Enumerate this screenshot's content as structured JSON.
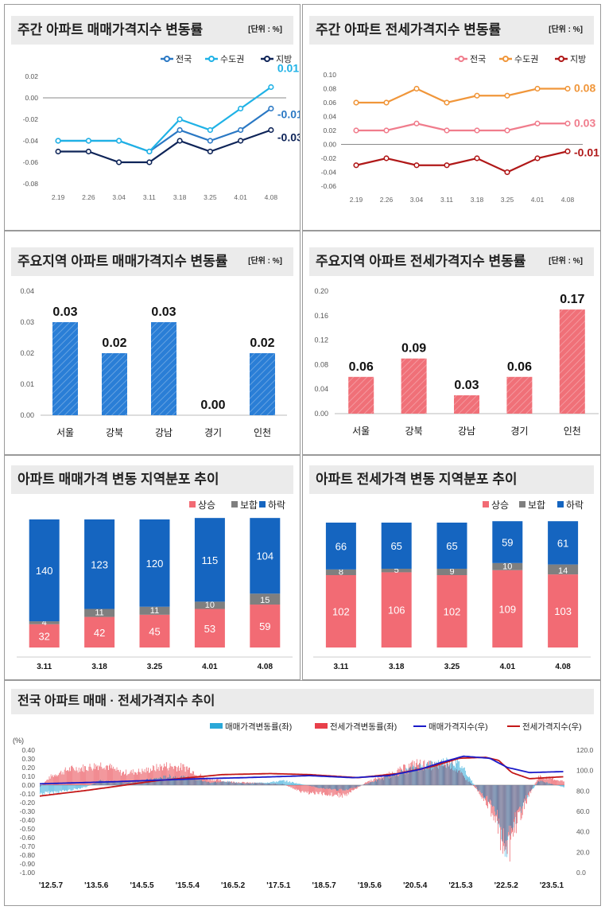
{
  "weekly_sale": {
    "title": "주간 아파트 매매가격지수 변동률",
    "unit": "[단위 : %]",
    "colors": [
      "#2a78c4",
      "#1fb2e6",
      "#0e2458"
    ],
    "chart_data": {
      "type": "line",
      "categories": [
        "2.19",
        "2.26",
        "3.04",
        "3.11",
        "3.18",
        "3.25",
        "4.01",
        "4.08"
      ],
      "series": [
        {
          "name": "전국",
          "values": [
            -0.04,
            -0.04,
            -0.04,
            -0.05,
            -0.03,
            -0.04,
            -0.03,
            -0.01
          ]
        },
        {
          "name": "수도권",
          "values": [
            -0.04,
            -0.04,
            -0.04,
            -0.05,
            -0.02,
            -0.03,
            -0.01,
            0.01
          ]
        },
        {
          "name": "지방",
          "values": [
            -0.05,
            -0.05,
            -0.06,
            -0.06,
            -0.04,
            -0.05,
            -0.04,
            -0.03
          ]
        }
      ],
      "ylim": [
        -0.08,
        0.02
      ],
      "yticks": [
        "0.02",
        "0.00",
        "-0.02",
        "-0.04",
        "-0.06",
        "-0.08"
      ],
      "end_labels": [
        "-0.01",
        "0.01",
        "-0.03"
      ]
    }
  },
  "weekly_jeonse": {
    "title": "주간 아파트 전세가격지수 변동률",
    "unit": "[단위 : %]",
    "colors": [
      "#f07c8c",
      "#f0963a",
      "#b01818"
    ],
    "chart_data": {
      "type": "line",
      "categories": [
        "2.19",
        "2.26",
        "3.04",
        "3.11",
        "3.18",
        "3.25",
        "4.01",
        "4.08"
      ],
      "series": [
        {
          "name": "전국",
          "values": [
            0.02,
            0.02,
            0.03,
            0.02,
            0.02,
            0.02,
            0.03,
            0.03
          ]
        },
        {
          "name": "수도권",
          "values": [
            0.06,
            0.06,
            0.08,
            0.06,
            0.07,
            0.07,
            0.08,
            0.08
          ]
        },
        {
          "name": "지방",
          "values": [
            -0.03,
            -0.02,
            -0.03,
            -0.03,
            -0.02,
            -0.04,
            -0.02,
            -0.01
          ]
        }
      ],
      "ylim": [
        -0.06,
        0.1
      ],
      "yticks": [
        "0.10",
        "0.08",
        "0.06",
        "0.04",
        "0.02",
        "0.00",
        "-0.02",
        "-0.04",
        "-0.06"
      ],
      "end_labels": [
        "0.03",
        "0.08",
        "-0.01"
      ]
    }
  },
  "region_sale": {
    "title": "주요지역 아파트 매매가격지수 변동률",
    "unit": "[단위 : %]",
    "color": "#2a7ed6",
    "chart_data": {
      "type": "bar",
      "categories": [
        "서울",
        "강북",
        "강남",
        "경기",
        "인천"
      ],
      "values": [
        0.03,
        0.02,
        0.03,
        0.0,
        0.02
      ],
      "labels": [
        "0.03",
        "0.02",
        "0.03",
        "0.00",
        "0.02"
      ],
      "ylim": [
        0,
        0.04
      ],
      "yticks": [
        "0.04",
        "0.03",
        "0.02",
        "0.01",
        "0.00"
      ]
    }
  },
  "region_jeonse": {
    "title": "주요지역 아파트 전세가격지수 변동률",
    "unit": "[단위 : %]",
    "color": "#f07078",
    "chart_data": {
      "type": "bar",
      "categories": [
        "서울",
        "강북",
        "강남",
        "경기",
        "인천"
      ],
      "values": [
        0.06,
        0.09,
        0.03,
        0.06,
        0.17
      ],
      "labels": [
        "0.06",
        "0.09",
        "0.03",
        "0.06",
        "0.17"
      ],
      "ylim": [
        0,
        0.2
      ],
      "yticks": [
        "0.20",
        "0.16",
        "0.12",
        "0.08",
        "0.04",
        "0.00"
      ]
    }
  },
  "dist_sale": {
    "title": "아파트 매매가격 변동 지역분포 추이",
    "legend": [
      "상승",
      "보합",
      "하락"
    ],
    "colors": [
      "#f26b74",
      "#7f7f7f",
      "#1565c0"
    ],
    "chart_data": {
      "type": "bar",
      "stacked": true,
      "categories": [
        "3.11",
        "3.18",
        "3.25",
        "4.01",
        "4.08"
      ],
      "series": [
        {
          "name": "상승",
          "values": [
            32,
            42,
            45,
            53,
            59
          ]
        },
        {
          "name": "보합",
          "values": [
            4,
            11,
            11,
            10,
            15
          ]
        },
        {
          "name": "하락",
          "values": [
            140,
            123,
            120,
            115,
            104
          ]
        }
      ],
      "total": 176
    }
  },
  "dist_jeonse": {
    "title": "아파트 전세가격 변동 지역분포 추이",
    "legend": [
      "상승",
      "보합",
      "하락"
    ],
    "colors": [
      "#f26b74",
      "#7f7f7f",
      "#1565c0"
    ],
    "chart_data": {
      "type": "bar",
      "stacked": true,
      "categories": [
        "3.11",
        "3.18",
        "3.25",
        "4.01",
        "4.08"
      ],
      "series": [
        {
          "name": "상승",
          "values": [
            102,
            106,
            102,
            109,
            103
          ]
        },
        {
          "name": "보합",
          "values": [
            8,
            5,
            9,
            10,
            14
          ]
        },
        {
          "name": "하락",
          "values": [
            66,
            65,
            65,
            59,
            61
          ]
        }
      ],
      "total": 176
    }
  },
  "national": {
    "title": "전국 아파트 매매 · 전세가격지수 추이",
    "legend": [
      "매매가격변동률(좌)",
      "전세가격변동률(좌)",
      "매매가격지수(우)",
      "전세가격지수(우)"
    ],
    "colors": [
      "#2aa8d8",
      "#e8404a",
      "#1a1ac8",
      "#c41818"
    ],
    "chart_data": {
      "type": "bar+line",
      "left_unit": "(%)",
      "left_ylim": [
        -1.0,
        0.4
      ],
      "left_ticks": [
        "0.40",
        "0.30",
        "0.20",
        "0.10",
        "0.00",
        "-0.10",
        "-0.20",
        "-0.30",
        "-0.40",
        "-0.50",
        "-0.60",
        "-0.70",
        "-0.80",
        "-0.90",
        "-1.00"
      ],
      "right_ylim": [
        0,
        120
      ],
      "right_ticks": [
        "120.0",
        "100.0",
        "80.0",
        "60.0",
        "40.0",
        "20.0",
        "0.0"
      ],
      "x_labels": [
        "'12.5.7",
        "'13.5.6",
        "'14.5.5",
        "'15.5.4",
        "'16.5.2",
        "'17.5.1",
        "'18.5.7",
        "'19.5.6",
        "'20.5.4",
        "'21.5.3",
        "'22.5.2",
        "'23.5.1"
      ],
      "x_range_years": [
        2012.35,
        2024.3
      ],
      "sale_rate_keypoints": [
        [
          2012.35,
          -0.1
        ],
        [
          2013.0,
          -0.06
        ],
        [
          2013.4,
          -0.02
        ],
        [
          2013.7,
          0.05
        ],
        [
          2014.0,
          0.04
        ],
        [
          2014.4,
          0.03
        ],
        [
          2014.8,
          0.06
        ],
        [
          2015.3,
          0.1
        ],
        [
          2015.8,
          0.08
        ],
        [
          2016.2,
          0.03
        ],
        [
          2016.6,
          0.04
        ],
        [
          2017.0,
          0.02
        ],
        [
          2017.5,
          0.03
        ],
        [
          2017.9,
          0.05
        ],
        [
          2018.3,
          0.01
        ],
        [
          2018.8,
          -0.04
        ],
        [
          2019.3,
          -0.06
        ],
        [
          2019.8,
          0.02
        ],
        [
          2020.3,
          0.1
        ],
        [
          2020.9,
          0.2
        ],
        [
          2021.3,
          0.24
        ],
        [
          2021.7,
          0.28
        ],
        [
          2021.95,
          0.22
        ],
        [
          2022.3,
          -0.05
        ],
        [
          2022.7,
          -0.25
        ],
        [
          2022.95,
          -0.72
        ],
        [
          2023.15,
          -0.4
        ],
        [
          2023.4,
          -0.15
        ],
        [
          2023.7,
          0.05
        ],
        [
          2023.95,
          0.02
        ],
        [
          2024.3,
          -0.03
        ]
      ],
      "jeonse_rate_keypoints": [
        [
          2012.35,
          -0.02
        ],
        [
          2012.6,
          0.1
        ],
        [
          2013.0,
          0.18
        ],
        [
          2013.4,
          0.2
        ],
        [
          2013.8,
          0.24
        ],
        [
          2014.2,
          0.14
        ],
        [
          2014.7,
          0.16
        ],
        [
          2015.2,
          0.22
        ],
        [
          2015.7,
          0.2
        ],
        [
          2016.1,
          0.08
        ],
        [
          2016.6,
          0.04
        ],
        [
          2017.0,
          0.03
        ],
        [
          2017.5,
          0.02
        ],
        [
          2017.9,
          0.01
        ],
        [
          2018.3,
          -0.08
        ],
        [
          2018.8,
          -0.1
        ],
        [
          2019.3,
          -0.12
        ],
        [
          2019.8,
          0.04
        ],
        [
          2020.4,
          0.14
        ],
        [
          2020.9,
          0.25
        ],
        [
          2021.3,
          0.22
        ],
        [
          2021.7,
          0.24
        ],
        [
          2021.95,
          0.12
        ],
        [
          2022.3,
          -0.05
        ],
        [
          2022.7,
          -0.35
        ],
        [
          2022.95,
          -0.88
        ],
        [
          2023.15,
          -0.5
        ],
        [
          2023.4,
          -0.2
        ],
        [
          2023.7,
          0.1
        ],
        [
          2023.95,
          0.08
        ],
        [
          2024.3,
          0.04
        ]
      ],
      "sale_index_keypoints": [
        [
          2012.35,
          87
        ],
        [
          2014.0,
          89
        ],
        [
          2016.0,
          92
        ],
        [
          2017.0,
          93
        ],
        [
          2018.5,
          95
        ],
        [
          2019.5,
          93
        ],
        [
          2020.3,
          95
        ],
        [
          2021.0,
          101
        ],
        [
          2021.5,
          108
        ],
        [
          2022.0,
          114
        ],
        [
          2022.6,
          112
        ],
        [
          2023.0,
          103
        ],
        [
          2023.5,
          98
        ],
        [
          2024.3,
          99
        ]
      ],
      "jeonse_index_keypoints": [
        [
          2012.35,
          75
        ],
        [
          2013.5,
          81
        ],
        [
          2015.0,
          90
        ],
        [
          2016.5,
          96
        ],
        [
          2017.6,
          97
        ],
        [
          2018.5,
          96
        ],
        [
          2019.6,
          93
        ],
        [
          2020.5,
          97
        ],
        [
          2021.3,
          104
        ],
        [
          2021.9,
          112
        ],
        [
          2022.5,
          113
        ],
        [
          2022.8,
          110
        ],
        [
          2023.1,
          98
        ],
        [
          2023.5,
          92
        ],
        [
          2024.3,
          94
        ]
      ]
    }
  }
}
